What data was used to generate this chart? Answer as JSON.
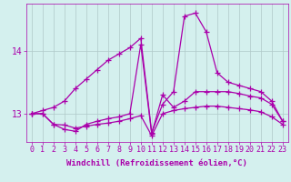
{
  "x": [
    0,
    1,
    2,
    3,
    4,
    5,
    6,
    7,
    8,
    9,
    10,
    11,
    12,
    13,
    14,
    15,
    16,
    17,
    18,
    19,
    20,
    21,
    22,
    23
  ],
  "line_zigzag": [
    13.0,
    13.0,
    12.83,
    12.75,
    12.72,
    12.83,
    12.88,
    12.92,
    12.95,
    13.0,
    14.1,
    12.68,
    13.3,
    13.1,
    13.2,
    13.35,
    13.35,
    13.35,
    13.35,
    13.32,
    13.28,
    13.25,
    13.15,
    12.88
  ],
  "line_peak": [
    13.0,
    13.05,
    13.1,
    13.2,
    13.4,
    13.55,
    13.7,
    13.85,
    13.95,
    14.05,
    14.2,
    12.7,
    13.15,
    13.35,
    14.55,
    14.6,
    14.3,
    13.65,
    13.5,
    13.45,
    13.4,
    13.35,
    13.2,
    12.88
  ],
  "line_flat": [
    13.0,
    13.0,
    12.83,
    12.82,
    12.77,
    12.8,
    12.83,
    12.85,
    12.88,
    12.92,
    12.97,
    12.65,
    13.0,
    13.05,
    13.08,
    13.1,
    13.12,
    13.12,
    13.1,
    13.08,
    13.06,
    13.03,
    12.95,
    12.83
  ],
  "line_color": "#aa00aa",
  "bg_color": "#d4f0ee",
  "grid_color": "#b0c8c8",
  "xlabel": "Windchill (Refroidissement éolien,°C)",
  "ylim": [
    12.55,
    14.75
  ],
  "xlim": [
    -0.5,
    23.5
  ],
  "yticks": [
    13,
    14
  ],
  "xticks": [
    0,
    1,
    2,
    3,
    4,
    5,
    6,
    7,
    8,
    9,
    10,
    11,
    12,
    13,
    14,
    15,
    16,
    17,
    18,
    19,
    20,
    21,
    22,
    23
  ],
  "marker": "+",
  "markersize": 4,
  "linewidth": 0.9,
  "xlabel_fontsize": 6.5,
  "tick_fontsize": 6.0
}
